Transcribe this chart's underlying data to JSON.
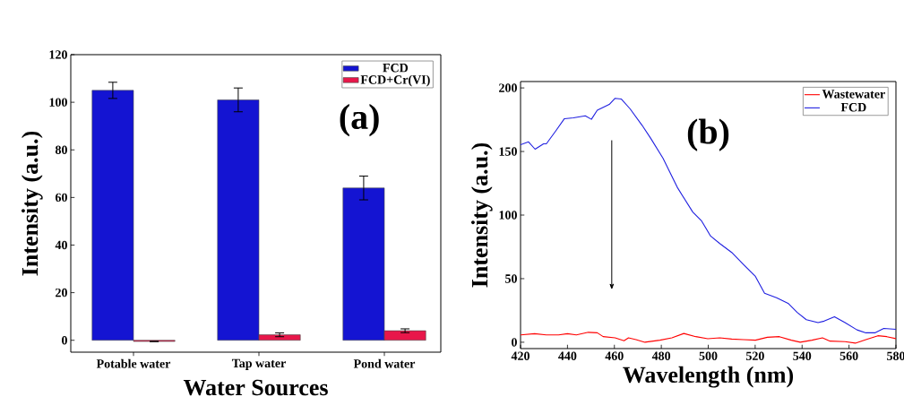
{
  "chart_data": [
    {
      "type": "bar",
      "categories": [
        "Potable water",
        "Tap water",
        "Pond water"
      ],
      "series": [
        {
          "name": "FCD",
          "color": "#1414d2",
          "values": [
            105,
            101,
            64
          ],
          "errors": [
            3.4,
            5,
            5
          ]
        },
        {
          "name": "FCD+Cr(VI)",
          "color": "#e8174a",
          "values": [
            -0.5,
            2.3,
            4
          ],
          "errors": [
            null,
            0.8,
            0.8
          ]
        }
      ],
      "xlabel": "Water Sources",
      "ylabel": "Intensity (a.u.)",
      "ylim": [
        -5,
        120
      ],
      "yticks": [
        0,
        20,
        40,
        60,
        80,
        100,
        120
      ],
      "legend": "top right",
      "annotations": [
        "(a)"
      ]
    },
    {
      "type": "line",
      "series": [
        {
          "name": "Wastewater",
          "color": "#ff0000",
          "x": [
            420,
            426,
            431,
            436.2,
            440,
            443.8,
            448.9,
            452.7,
            455.2,
            460.3,
            464.1,
            466,
            469.2,
            473,
            479.4,
            484.5,
            489.6,
            494.7,
            499.8,
            504.9,
            510,
            515,
            520.1,
            525.2,
            530.3,
            535.4,
            539.2,
            544.2,
            548.7,
            551.9,
            558.3,
            562.7,
            567.2,
            572.3,
            576.1,
            580
          ],
          "values": [
            5.8,
            6.7,
            5.8,
            5.8,
            6.7,
            5.8,
            7.8,
            7.4,
            4.4,
            3.5,
            1.2,
            3.5,
            2.1,
            0,
            1.6,
            3.5,
            6.9,
            4.4,
            2.8,
            3.5,
            2.5,
            2.1,
            1.6,
            3.9,
            4.4,
            1.6,
            0,
            1.6,
            3.5,
            0.9,
            0.5,
            -0.7,
            2.1,
            5.1,
            4.4,
            2.8
          ]
        },
        {
          "name": "FCD",
          "color": "#1f1fe0",
          "x": [
            420,
            423.4,
            426.2,
            429.8,
            431,
            434.9,
            438.7,
            442.5,
            447.6,
            450.2,
            452.7,
            457.8,
            460.3,
            462.9,
            466.7,
            471.8,
            475.6,
            480.7,
            487,
            493.4,
            497.2,
            501,
            504.9,
            510,
            515,
            520.1,
            524,
            529.1,
            534.2,
            537.9,
            541.8,
            546.8,
            549.4,
            553.8,
            558.3,
            563.4,
            567.2,
            571,
            574.8,
            580
          ],
          "values": [
            155.3,
            157.6,
            151.8,
            156,
            156,
            165.9,
            175.8,
            176.5,
            178,
            175.3,
            182.4,
            187,
            191.8,
            191.3,
            183.5,
            170.6,
            160,
            144.7,
            121.2,
            102.4,
            95.3,
            83.5,
            77.6,
            70.6,
            61.2,
            51.8,
            38.5,
            35,
            30.4,
            23.5,
            17.7,
            15.4,
            16.6,
            20,
            15.4,
            9.7,
            7.4,
            7.4,
            10.8,
            10.1
          ]
        }
      ],
      "xlabel": "Wavelength (nm)",
      "ylabel": "Intensity (a.u.)",
      "xlim": [
        420,
        580
      ],
      "xticks": [
        420,
        440,
        460,
        480,
        500,
        520,
        540,
        560,
        580
      ],
      "ylim": [
        -5,
        205
      ],
      "yticks": [
        0,
        50,
        100,
        150,
        200
      ],
      "legend": "top right",
      "annotations": [
        "(b)"
      ]
    }
  ]
}
